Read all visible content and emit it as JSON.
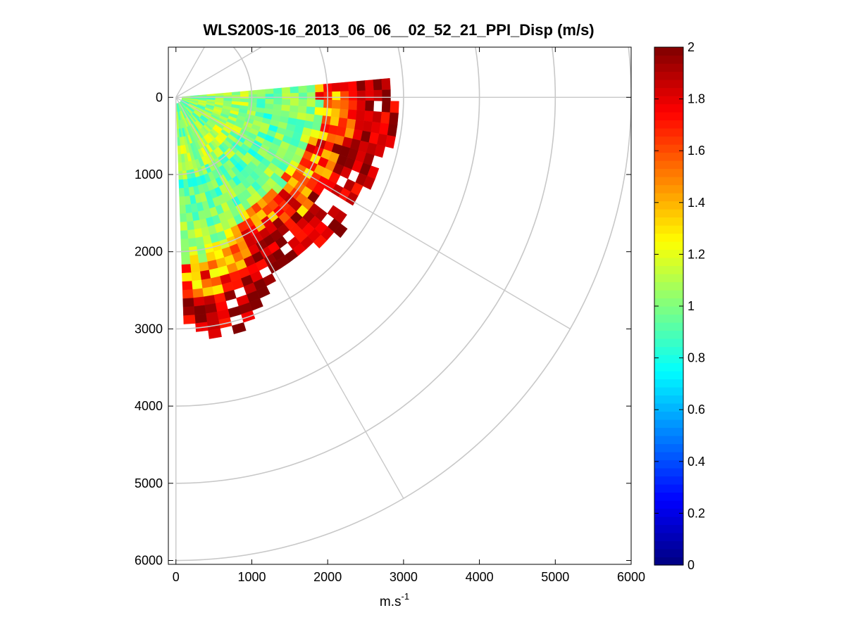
{
  "chart_data": {
    "type": "heatmap",
    "title": "WLS200S-16_2013_06_06__02_52_21_PPI_Disp (m/s)",
    "xlabel": "m.s",
    "xlabel_superscript": "-1",
    "ylabel": "",
    "xlim": [
      -100,
      6000
    ],
    "ylim": [
      -650,
      6050
    ],
    "y_reversed": true,
    "x_ticks": [
      "0",
      "1000",
      "2000",
      "3000",
      "4000",
      "5000",
      "6000"
    ],
    "y_ticks": [
      "0",
      "1000",
      "2000",
      "3000",
      "4000",
      "5000",
      "6000"
    ],
    "grid": "polar",
    "polar_grid": {
      "ring_radii": [
        1000,
        2000,
        3000,
        4000,
        5000,
        6000
      ],
      "spoke_angles_deg": [
        -60,
        -30,
        0,
        30,
        60,
        90
      ],
      "color": "#c8c8c8"
    },
    "sector": {
      "angle_start_deg": -5,
      "angle_end_deg": 88,
      "angle_step_deg": 3,
      "range_start": 80,
      "range_step": 110,
      "range_gates": 28,
      "max_range_by_sector": [
        2800,
        2800,
        2900,
        2850,
        2900,
        2900,
        2800,
        2700,
        2750,
        2800,
        2800,
        2700,
        2650,
        2650,
        2750,
        2800,
        2650,
        2600,
        2550,
        2550,
        2600,
        2650,
        2700,
        2800,
        2900,
        3000,
        3050,
        3200,
        3250,
        3250,
        3200
      ],
      "core_value_by_gate": [
        1.0,
        1.0,
        1.0,
        1.0,
        1.05,
        1.1,
        1.1,
        1.05,
        1.0,
        0.95,
        0.95,
        0.95,
        1.0,
        1.0,
        1.0,
        1.05,
        1.1,
        1.15,
        1.2,
        1.25,
        1.4,
        1.6,
        1.8,
        1.95,
        2.0,
        2.0,
        2.0,
        2.0
      ]
    },
    "colorbar": {
      "colormap": "jet",
      "range": [
        0,
        2
      ],
      "ticks": [
        "0",
        "0.2",
        "0.4",
        "0.6",
        "0.8",
        "1",
        "1.2",
        "1.4",
        "1.6",
        "1.8",
        "2"
      ],
      "levels": 64
    },
    "colors": {
      "axis": "#000000",
      "grid": "#c8c8c8",
      "background": "#ffffff"
    }
  }
}
